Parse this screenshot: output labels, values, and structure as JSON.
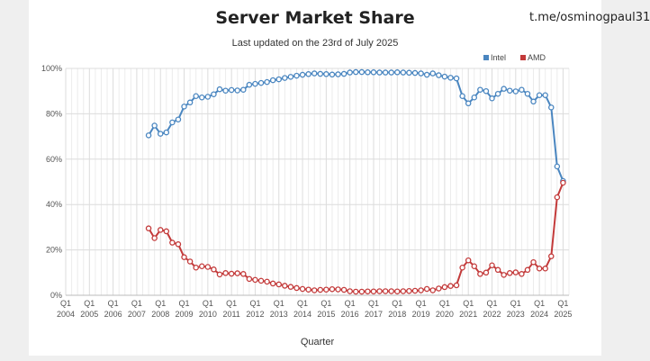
{
  "header": {
    "handle": "t.me/osminogpaul31"
  },
  "chart_data": {
    "type": "line",
    "title": "Server Market Share",
    "subtitle": "Last updated on the 23rd of July 2025",
    "xlabel": "Quarter",
    "ylabel": "",
    "ylim": [
      0,
      100
    ],
    "y_ticks": [
      "0%",
      "20%",
      "40%",
      "60%",
      "80%",
      "100%"
    ],
    "x_range": [
      2004.0,
      2025.25
    ],
    "x_tick_labels": [
      {
        "q": "Q1",
        "year": "2004"
      },
      {
        "q": "Q1",
        "year": "2005"
      },
      {
        "q": "Q1",
        "year": "2006"
      },
      {
        "q": "Q1",
        "year": "2007"
      },
      {
        "q": "Q1",
        "year": "2008"
      },
      {
        "q": "Q1",
        "year": "2009"
      },
      {
        "q": "Q1",
        "year": "2010"
      },
      {
        "q": "Q1",
        "year": "2011"
      },
      {
        "q": "Q1",
        "year": "2012"
      },
      {
        "q": "Q1",
        "year": "2013"
      },
      {
        "q": "Q1",
        "year": "2014"
      },
      {
        "q": "Q1",
        "year": "2015"
      },
      {
        "q": "Q1",
        "year": "2016"
      },
      {
        "q": "Q1",
        "year": "2017"
      },
      {
        "q": "Q1",
        "year": "2018"
      },
      {
        "q": "Q1",
        "year": "2019"
      },
      {
        "q": "Q1",
        "year": "2020"
      },
      {
        "q": "Q1",
        "year": "2021"
      },
      {
        "q": "Q1",
        "year": "2022"
      },
      {
        "q": "Q1",
        "year": "2023"
      },
      {
        "q": "Q1",
        "year": "2024"
      },
      {
        "q": "Q1",
        "year": "2025"
      }
    ],
    "grid": true,
    "legend_position": "top-right",
    "x": [
      2007.5,
      2007.75,
      2008.0,
      2008.25,
      2008.5,
      2008.75,
      2009.0,
      2009.25,
      2009.5,
      2009.75,
      2010.0,
      2010.25,
      2010.5,
      2010.75,
      2011.0,
      2011.25,
      2011.5,
      2011.75,
      2012.0,
      2012.25,
      2012.5,
      2012.75,
      2013.0,
      2013.25,
      2013.5,
      2013.75,
      2014.0,
      2014.25,
      2014.5,
      2014.75,
      2015.0,
      2015.25,
      2015.5,
      2015.75,
      2016.0,
      2016.25,
      2016.5,
      2016.75,
      2017.0,
      2017.25,
      2017.5,
      2017.75,
      2018.0,
      2018.25,
      2018.5,
      2018.75,
      2019.0,
      2019.25,
      2019.5,
      2019.75,
      2020.0,
      2020.25,
      2020.5,
      2020.75,
      2021.0,
      2021.25,
      2021.5,
      2021.75,
      2022.0,
      2022.25,
      2022.5,
      2022.75,
      2023.0,
      2023.25,
      2023.5,
      2023.75,
      2024.0,
      2024.25,
      2024.5,
      2024.75,
      2025.0
    ],
    "series": [
      {
        "name": "Intel",
        "color": "#4a86c0",
        "values": [
          70.5,
          74.8,
          71.2,
          71.8,
          76.2,
          77.5,
          83.2,
          85.0,
          87.8,
          87.2,
          87.5,
          88.6,
          90.8,
          90.2,
          90.5,
          90.3,
          90.6,
          92.8,
          93.2,
          93.6,
          94.0,
          94.8,
          95.2,
          95.8,
          96.3,
          96.8,
          97.2,
          97.5,
          97.8,
          97.6,
          97.5,
          97.3,
          97.4,
          97.6,
          98.2,
          98.4,
          98.4,
          98.3,
          98.3,
          98.2,
          98.2,
          98.2,
          98.3,
          98.2,
          98.1,
          98.0,
          97.8,
          97.2,
          97.8,
          97.0,
          96.4,
          95.9,
          95.6,
          87.8,
          84.6,
          87.2,
          90.6,
          90.0,
          86.8,
          88.8,
          91.0,
          90.2,
          89.9,
          90.6,
          88.8,
          85.4,
          88.2,
          88.2,
          82.8,
          56.8,
          50.4
        ]
      },
      {
        "name": "AMD",
        "color": "#c33a3a",
        "values": [
          29.5,
          25.2,
          28.8,
          28.2,
          23.2,
          22.5,
          16.8,
          14.9,
          12.2,
          12.8,
          12.5,
          11.4,
          9.2,
          9.8,
          9.5,
          9.7,
          9.4,
          7.2,
          6.8,
          6.4,
          6.0,
          5.2,
          4.8,
          4.2,
          3.7,
          3.2,
          2.8,
          2.5,
          2.2,
          2.4,
          2.5,
          2.7,
          2.6,
          2.4,
          1.8,
          1.6,
          1.6,
          1.7,
          1.7,
          1.8,
          1.8,
          1.8,
          1.7,
          1.8,
          1.9,
          2.0,
          2.2,
          2.8,
          2.2,
          3.0,
          3.6,
          4.1,
          4.4,
          12.2,
          15.4,
          12.8,
          9.4,
          10.0,
          13.2,
          11.2,
          9.0,
          9.8,
          10.1,
          9.4,
          11.2,
          14.6,
          11.8,
          11.8,
          17.2,
          43.2,
          49.6
        ]
      }
    ]
  }
}
